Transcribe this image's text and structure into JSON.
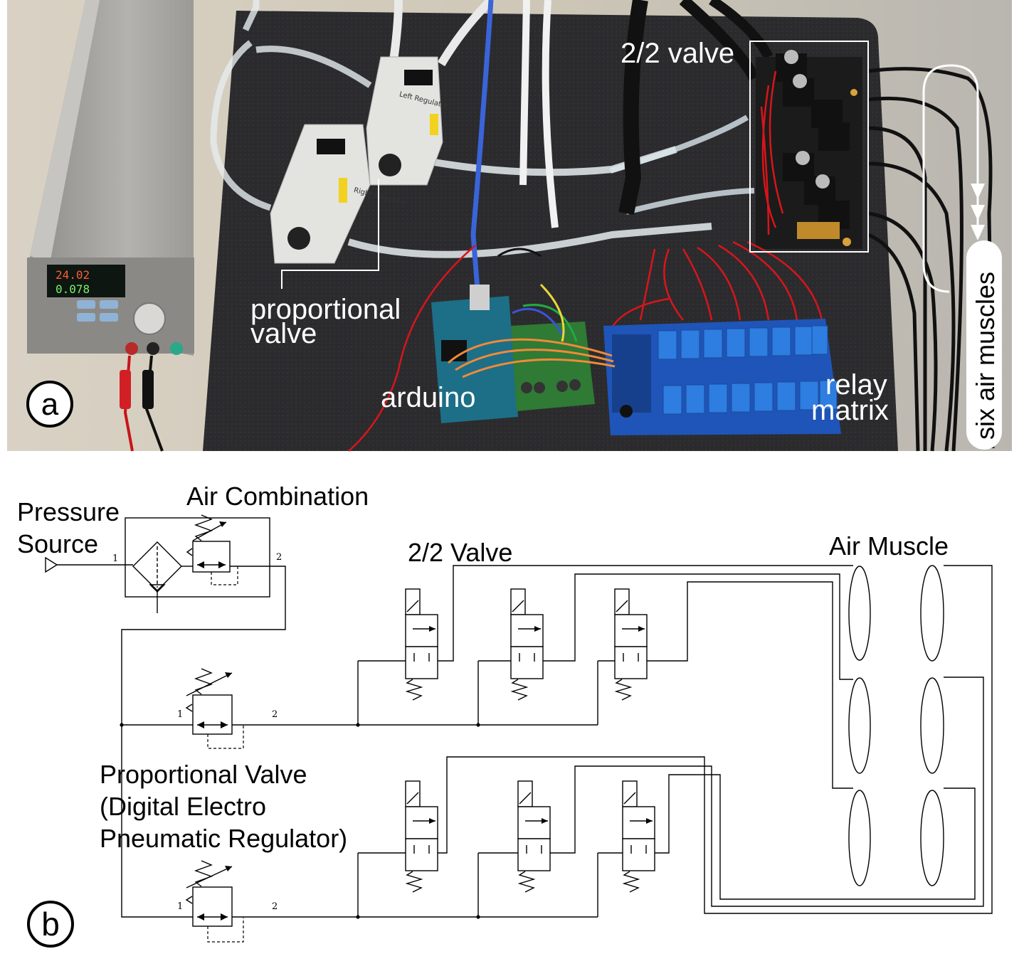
{
  "panel_a": {
    "marker": "a",
    "labels": {
      "valve22": "2/2 valve",
      "proportional": [
        "proportional",
        "valve"
      ],
      "arduino": "arduino",
      "relay": [
        "relay",
        "matrix"
      ],
      "muscles": "six air muscles"
    },
    "power_supply_readout": [
      "24.02",
      "0.078"
    ],
    "regulator_tags": [
      "Right Regulator",
      "Left Regulator"
    ],
    "colors": {
      "mat": "#2a2a2c",
      "table": "#cfc9bd",
      "psu": "#a7a5a2",
      "relay_board": "#1f55b8",
      "relay": "#2e7de0",
      "arduino": "#1c6f86",
      "wire_red": "#d8151b"
    }
  },
  "panel_b": {
    "marker": "b",
    "labels": {
      "pressure_source": [
        "Pressure",
        "Source"
      ],
      "air_combination": "Air Combination",
      "valve22": "2/2 Valve",
      "air_muscle": "Air Muscle",
      "proportional_valve": [
        "Proportional Valve",
        "(Digital Electro",
        "Pneumatic Regulator)"
      ]
    },
    "port_numbers": {
      "in": "1",
      "out": "2"
    }
  }
}
